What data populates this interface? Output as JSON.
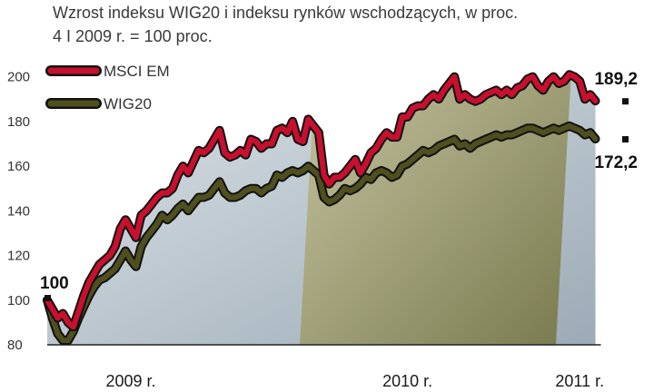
{
  "chart_data": {
    "type": "line",
    "title": "Wzrost indeksu WIG20 i indeksu rynków wschodzących, w proc.",
    "subtitle": "4 I 2009 r. = 100 proc.",
    "xlabel": "",
    "ylabel": "",
    "xlim": [
      2009.0,
      2011.22
    ],
    "ylim": [
      80,
      210
    ],
    "y_ticks": [
      80,
      100,
      120,
      140,
      160,
      180,
      200
    ],
    "x_tick_labels": [
      {
        "x": 2009.32,
        "label": "2009 r."
      },
      {
        "x": 2010.38,
        "label": "2010 r."
      },
      {
        "x": 2011.04,
        "label": "2011 r."
      }
    ],
    "legend": {
      "placement": "top-left"
    },
    "colors": {
      "MSCI EM": "#c8102e",
      "WIG20": "#4f4f1f",
      "outline": "#111111"
    },
    "annotations": [
      {
        "text": "100",
        "x": 2009.0,
        "y": 100
      },
      {
        "text": "189,2",
        "x": 2011.17,
        "y": 189.2
      },
      {
        "text": "172,2",
        "x": 2011.17,
        "y": 172.2
      }
    ],
    "series": [
      {
        "name": "MSCI EM",
        "points": [
          [
            2009.0,
            100
          ],
          [
            2009.02,
            96
          ],
          [
            2009.04,
            92
          ],
          [
            2009.06,
            94
          ],
          [
            2009.08,
            90
          ],
          [
            2009.1,
            88
          ],
          [
            2009.12,
            95
          ],
          [
            2009.14,
            102
          ],
          [
            2009.16,
            108
          ],
          [
            2009.18,
            112
          ],
          [
            2009.2,
            116
          ],
          [
            2009.22,
            118
          ],
          [
            2009.24,
            120
          ],
          [
            2009.26,
            124
          ],
          [
            2009.28,
            132
          ],
          [
            2009.3,
            136
          ],
          [
            2009.32,
            132
          ],
          [
            2009.34,
            128
          ],
          [
            2009.36,
            138
          ],
          [
            2009.38,
            140
          ],
          [
            2009.4,
            143
          ],
          [
            2009.42,
            146
          ],
          [
            2009.44,
            148
          ],
          [
            2009.46,
            148
          ],
          [
            2009.48,
            150
          ],
          [
            2009.5,
            156
          ],
          [
            2009.52,
            160
          ],
          [
            2009.54,
            157
          ],
          [
            2009.56,
            162
          ],
          [
            2009.58,
            167
          ],
          [
            2009.6,
            166
          ],
          [
            2009.62,
            168
          ],
          [
            2009.64,
            172
          ],
          [
            2009.66,
            176
          ],
          [
            2009.68,
            166
          ],
          [
            2009.7,
            164
          ],
          [
            2009.72,
            165
          ],
          [
            2009.74,
            167
          ],
          [
            2009.76,
            165
          ],
          [
            2009.78,
            172
          ],
          [
            2009.8,
            171
          ],
          [
            2009.82,
            168
          ],
          [
            2009.84,
            170
          ],
          [
            2009.86,
            170
          ],
          [
            2009.88,
            176
          ],
          [
            2009.9,
            177
          ],
          [
            2009.92,
            175
          ],
          [
            2009.94,
            180
          ],
          [
            2009.96,
            172
          ],
          [
            2009.98,
            171
          ],
          [
            2010.0,
            181
          ],
          [
            2010.02,
            178
          ],
          [
            2010.04,
            175
          ],
          [
            2010.06,
            156
          ],
          [
            2010.08,
            152
          ],
          [
            2010.1,
            155
          ],
          [
            2010.12,
            155
          ],
          [
            2010.14,
            157
          ],
          [
            2010.16,
            160
          ],
          [
            2010.18,
            163
          ],
          [
            2010.2,
            157
          ],
          [
            2010.22,
            161
          ],
          [
            2010.24,
            166
          ],
          [
            2010.26,
            168
          ],
          [
            2010.28,
            172
          ],
          [
            2010.3,
            175
          ],
          [
            2010.32,
            173
          ],
          [
            2010.34,
            173
          ],
          [
            2010.36,
            182
          ],
          [
            2010.38,
            182
          ],
          [
            2010.4,
            186
          ],
          [
            2010.42,
            187
          ],
          [
            2010.44,
            187
          ],
          [
            2010.46,
            190
          ],
          [
            2010.48,
            192
          ],
          [
            2010.5,
            190
          ],
          [
            2010.52,
            194
          ],
          [
            2010.54,
            197
          ],
          [
            2010.56,
            200
          ],
          [
            2010.58,
            190
          ],
          [
            2010.6,
            192
          ],
          [
            2010.62,
            190
          ],
          [
            2010.64,
            189
          ],
          [
            2010.66,
            190
          ],
          [
            2010.68,
            192
          ],
          [
            2010.7,
            193
          ],
          [
            2010.72,
            194
          ],
          [
            2010.74,
            192
          ],
          [
            2010.76,
            194
          ],
          [
            2010.78,
            192
          ],
          [
            2010.8,
            195
          ],
          [
            2010.82,
            196
          ],
          [
            2010.84,
            199
          ],
          [
            2010.86,
            200
          ],
          [
            2010.88,
            196
          ],
          [
            2010.9,
            194
          ],
          [
            2010.92,
            198
          ],
          [
            2010.94,
            200
          ],
          [
            2010.96,
            197
          ],
          [
            2010.98,
            198
          ],
          [
            2011.0,
            201
          ],
          [
            2011.02,
            200
          ],
          [
            2011.04,
            198
          ],
          [
            2011.06,
            190
          ],
          [
            2011.08,
            192
          ],
          [
            2011.1,
            189.2
          ]
        ]
      },
      {
        "name": "WIG20",
        "points": [
          [
            2009.0,
            100
          ],
          [
            2009.02,
            92
          ],
          [
            2009.04,
            85
          ],
          [
            2009.06,
            82
          ],
          [
            2009.08,
            82
          ],
          [
            2009.1,
            86
          ],
          [
            2009.12,
            92
          ],
          [
            2009.14,
            97
          ],
          [
            2009.16,
            102
          ],
          [
            2009.18,
            106
          ],
          [
            2009.2,
            109
          ],
          [
            2009.22,
            110
          ],
          [
            2009.24,
            112
          ],
          [
            2009.26,
            114
          ],
          [
            2009.28,
            118
          ],
          [
            2009.3,
            122
          ],
          [
            2009.32,
            118
          ],
          [
            2009.34,
            115
          ],
          [
            2009.36,
            124
          ],
          [
            2009.38,
            128
          ],
          [
            2009.4,
            131
          ],
          [
            2009.42,
            134
          ],
          [
            2009.44,
            138
          ],
          [
            2009.46,
            136
          ],
          [
            2009.48,
            138
          ],
          [
            2009.5,
            141
          ],
          [
            2009.52,
            143
          ],
          [
            2009.54,
            140
          ],
          [
            2009.56,
            143
          ],
          [
            2009.58,
            146
          ],
          [
            2009.6,
            146
          ],
          [
            2009.62,
            147
          ],
          [
            2009.64,
            150
          ],
          [
            2009.66,
            153
          ],
          [
            2009.68,
            148
          ],
          [
            2009.7,
            146
          ],
          [
            2009.72,
            146
          ],
          [
            2009.74,
            147
          ],
          [
            2009.76,
            149
          ],
          [
            2009.78,
            150
          ],
          [
            2009.8,
            150
          ],
          [
            2009.82,
            148
          ],
          [
            2009.84,
            150
          ],
          [
            2009.86,
            151
          ],
          [
            2009.88,
            156
          ],
          [
            2009.9,
            155
          ],
          [
            2009.92,
            157
          ],
          [
            2009.94,
            158
          ],
          [
            2009.96,
            157
          ],
          [
            2009.98,
            158
          ],
          [
            2010.0,
            160
          ],
          [
            2010.02,
            158
          ],
          [
            2010.04,
            156
          ],
          [
            2010.06,
            146
          ],
          [
            2010.08,
            144
          ],
          [
            2010.1,
            145
          ],
          [
            2010.12,
            147
          ],
          [
            2010.14,
            150
          ],
          [
            2010.16,
            149
          ],
          [
            2010.18,
            150
          ],
          [
            2010.2,
            152
          ],
          [
            2010.22,
            155
          ],
          [
            2010.24,
            154
          ],
          [
            2010.26,
            157
          ],
          [
            2010.28,
            158
          ],
          [
            2010.3,
            157
          ],
          [
            2010.32,
            155
          ],
          [
            2010.34,
            156
          ],
          [
            2010.36,
            160
          ],
          [
            2010.38,
            161
          ],
          [
            2010.4,
            163
          ],
          [
            2010.42,
            165
          ],
          [
            2010.44,
            167
          ],
          [
            2010.46,
            166
          ],
          [
            2010.48,
            167
          ],
          [
            2010.5,
            169
          ],
          [
            2010.52,
            170
          ],
          [
            2010.54,
            171
          ],
          [
            2010.56,
            172
          ],
          [
            2010.58,
            169
          ],
          [
            2010.6,
            170
          ],
          [
            2010.62,
            168
          ],
          [
            2010.64,
            170
          ],
          [
            2010.66,
            171
          ],
          [
            2010.68,
            172
          ],
          [
            2010.7,
            173
          ],
          [
            2010.72,
            174
          ],
          [
            2010.74,
            173
          ],
          [
            2010.76,
            174
          ],
          [
            2010.78,
            174
          ],
          [
            2010.8,
            175
          ],
          [
            2010.82,
            176
          ],
          [
            2010.84,
            177
          ],
          [
            2010.86,
            177
          ],
          [
            2010.88,
            176
          ],
          [
            2010.9,
            175
          ],
          [
            2010.92,
            176
          ],
          [
            2010.94,
            177
          ],
          [
            2010.96,
            176
          ],
          [
            2010.98,
            177
          ],
          [
            2011.0,
            178
          ],
          [
            2011.02,
            177
          ],
          [
            2011.04,
            176
          ],
          [
            2011.06,
            174
          ],
          [
            2011.08,
            175
          ],
          [
            2011.1,
            172.2
          ]
        ]
      }
    ]
  }
}
